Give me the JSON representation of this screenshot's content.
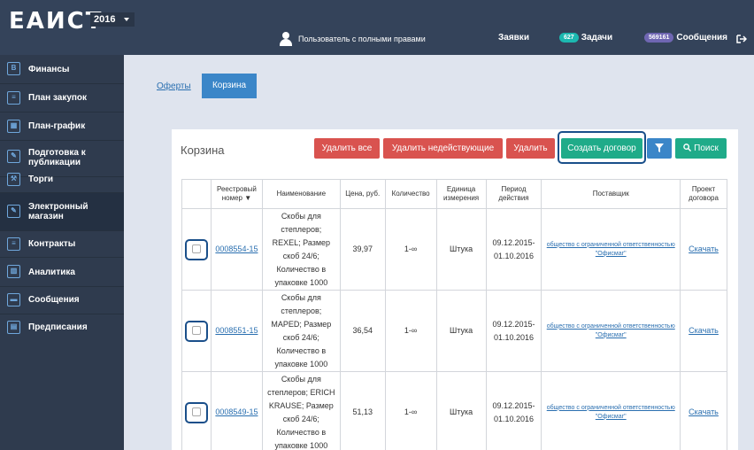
{
  "header": {
    "logo": "ЕАИСТ",
    "year": "2016",
    "user_role": "Пользователь с полными правами",
    "requests_label": "Заявки",
    "tasks_count": "627",
    "tasks_label": "Задачи",
    "messages_count": "569161",
    "messages_label": "Сообщения"
  },
  "sidebar": {
    "items": [
      {
        "label": "Финансы",
        "icon": "B"
      },
      {
        "label": "План закупок",
        "icon": "≡"
      },
      {
        "label": "План-график",
        "icon": "▦"
      },
      {
        "label": "Подготовка к публикации",
        "icon": "✎"
      },
      {
        "label": "Торги",
        "icon": "⚒"
      },
      {
        "label": "Электронный магазин",
        "icon": "✎"
      },
      {
        "label": "Контракты",
        "icon": "≡"
      },
      {
        "label": "Аналитика",
        "icon": "▥"
      },
      {
        "label": "Сообщения",
        "icon": "▬"
      },
      {
        "label": "Предписания",
        "icon": "▤"
      }
    ]
  },
  "tabs": {
    "offers": "Оферты",
    "cart": "Корзина"
  },
  "panel": {
    "title": "Корзина",
    "buttons": {
      "delete_all": "Удалить все",
      "delete_invalid": "Удалить недействующие",
      "delete": "Удалить",
      "create_contract": "Создать договор",
      "search": "Поиск"
    }
  },
  "table": {
    "headers": {
      "reg": "Реестровый номер ▼",
      "name": "Наименование",
      "price": "Цена, руб.",
      "qty": "Количество",
      "unit": "Единица измерения",
      "period": "Период действия",
      "supplier": "Поставщик",
      "draft": "Проект договора"
    },
    "rows": [
      {
        "reg": "0008554-15",
        "name": "Скобы для степлеров; REXEL; Размер скоб 24/6; Количество в упаковке 1000",
        "price": "39,97",
        "qty": "1-∞",
        "unit": "Штука",
        "period": "09.12.2015-01.10.2016",
        "supplier": "общество с ограниченной ответственностью \"Офисмаг\"",
        "download": "Скачать"
      },
      {
        "reg": "0008551-15",
        "name": "Скобы для степлеров; MAPED; Размер скоб 24/6; Количество в упаковке 1000",
        "price": "36,54",
        "qty": "1-∞",
        "unit": "Штука",
        "period": "09.12.2015-01.10.2016",
        "supplier": "общество с ограниченной ответственностью \"Офисмаг\"",
        "download": "Скачать"
      },
      {
        "reg": "0008549-15",
        "name": "Скобы для степлеров; ERICH KRAUSE; Размер скоб 24/6; Количество в упаковке 1000",
        "price": "51,13",
        "qty": "1-∞",
        "unit": "Штука",
        "period": "09.12.2015-01.10.2016",
        "supplier": "общество с ограниченной ответственностью \"Офисмаг\"",
        "download": "Скачать"
      }
    ]
  }
}
